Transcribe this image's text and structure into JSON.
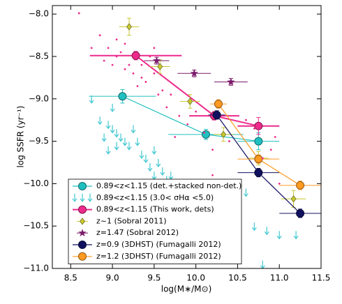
{
  "chart_data": {
    "type": "scatter",
    "xlabel": "log(M∗/M⊙)",
    "ylabel": "log SSFR  (yr⁻¹)",
    "xlim": [
      8.28,
      11.5
    ],
    "ylim": [
      -11.0,
      -7.9
    ],
    "xticks": [
      8.5,
      {
        "value": 9,
        "label": "9.0"
      },
      9.5,
      {
        "value": 10,
        "label": "10.0"
      },
      10.5,
      {
        "value": 11,
        "label": "11.0"
      },
      11.5
    ],
    "yticks": [
      {
        "value": -8,
        "label": "−8.0"
      },
      {
        "value": -8.5,
        "label": "−8.5"
      },
      {
        "value": -9,
        "label": "−9.0"
      },
      {
        "value": -9.5,
        "label": "−9.5"
      },
      {
        "value": -10,
        "label": "−10.0"
      },
      {
        "value": -10.5,
        "label": "−10.5"
      },
      {
        "value": -11,
        "label": "−11.0"
      }
    ],
    "legend": "lower left",
    "series": [
      {
        "name": "0.89<z<1.15 (det.+stacked non-det.)",
        "color": "#20c0c0",
        "marker": "circle",
        "line": true,
        "x": [
          9.12,
          10.12,
          10.75
        ],
        "y": [
          -8.97,
          -9.42,
          -9.5
        ],
        "xerr": [
          0.4,
          0.45,
          0.25
        ],
        "yerr": [
          0.08,
          0.06,
          0.1
        ]
      },
      {
        "name": "0.89<z<1.15  (3.0< σHα <5.0)",
        "color": "#40c8d0",
        "marker": "arrow",
        "line": false,
        "x": [
          9.0,
          8.85,
          8.95,
          9.0,
          9.05,
          8.9,
          9.1,
          9.15,
          9.2,
          8.95,
          9.05,
          9.25,
          9.3,
          9.35,
          9.4,
          9.45,
          9.5,
          9.55,
          9.6,
          9.65,
          9.7,
          9.75,
          9.8,
          9.85,
          9.9,
          9.95,
          10.0,
          10.1,
          10.15,
          10.25,
          10.35,
          10.45,
          10.6,
          10.7,
          10.85,
          11.0,
          11.2,
          10.8,
          8.75,
          9.5
        ],
        "y": [
          -9.1,
          -9.25,
          -9.3,
          -9.35,
          -9.4,
          -9.45,
          -9.45,
          -9.5,
          -9.55,
          -9.6,
          -9.55,
          -9.35,
          -9.5,
          -9.65,
          -9.7,
          -9.8,
          -9.9,
          -9.75,
          -9.85,
          -9.95,
          -9.9,
          -10.0,
          -10.05,
          -10.1,
          -10.15,
          -10.2,
          -10.25,
          -10.3,
          -10.5,
          -10.7,
          -10.55,
          -10.05,
          -10.1,
          -10.5,
          -10.55,
          -10.6,
          -10.6,
          -10.95,
          -9.0,
          -9.6
        ]
      },
      {
        "name": "0.89<z<1.15 (This work, dets)",
        "color": "#ee2a8c",
        "marker": "circle",
        "line": true,
        "x": [
          9.28,
          10.22,
          10.75
        ],
        "y": [
          -8.49,
          -9.2,
          -9.32
        ],
        "xerr": [
          0.55,
          0.3,
          0.25
        ],
        "yerr": [
          0.05,
          0.05,
          0.1
        ]
      },
      {
        "name": "z~1 (Sobral 2011)",
        "color": "#c8c832",
        "marker": "diamond",
        "line": false,
        "x": [
          9.2,
          9.57,
          9.93,
          10.33,
          10.75,
          11.17
        ],
        "y": [
          -8.15,
          -8.62,
          -9.03,
          -9.42,
          -9.7,
          -10.18
        ],
        "xerr": [
          0.12,
          0.12,
          0.12,
          0.12,
          0.12,
          0.15
        ],
        "yerr": [
          0.1,
          0.08,
          0.08,
          0.08,
          0.08,
          0.1
        ]
      },
      {
        "name": "z=1.47 (Sobral 2012)",
        "color": "#7a1a6a",
        "marker": "star",
        "line": false,
        "x": [
          9.53,
          9.98,
          10.42
        ],
        "y": [
          -8.55,
          -8.7,
          -8.8
        ],
        "xerr": [
          0.15,
          0.2,
          0.2
        ],
        "yerr": [
          0.04,
          0.04,
          0.04
        ]
      },
      {
        "name": "z=0.9 (3DHST) (Fumagalli 2012)",
        "color": "#101060",
        "marker": "circle",
        "line": true,
        "x": [
          10.25,
          10.75,
          11.25
        ],
        "y": [
          -9.19,
          -9.87,
          -10.35
        ],
        "xerr": [
          0.1,
          0.25,
          0.25
        ],
        "yerr": [
          0.05,
          0.05,
          0.05
        ]
      },
      {
        "name": "z=1.2 (3DHST) (Fumagalli 2012)",
        "color": "#ff9a20",
        "marker": "circle",
        "line": true,
        "x": [
          10.27,
          10.75,
          11.25
        ],
        "y": [
          -9.06,
          -9.71,
          -10.02
        ],
        "xerr": [
          0.1,
          0.25,
          0.25
        ],
        "yerr": [
          0.05,
          0.05,
          0.05
        ]
      },
      {
        "color": "#ee2a8c",
        "marker": "dot",
        "line": false,
        "x": [
          8.6,
          8.85,
          8.95,
          9.05,
          8.9,
          9.0,
          9.15,
          9.25,
          9.35,
          9.45,
          9.1,
          9.3,
          9.4,
          9.2,
          9.55,
          9.6,
          9.5,
          9.65,
          9.7,
          9.8,
          9.9,
          10.0,
          10.1,
          10.2,
          10.4,
          10.6,
          10.7,
          10.8,
          10.9,
          11.0,
          10.3,
          10.5,
          9.15,
          9.05,
          9.5,
          10.95,
          10.2,
          9.75,
          8.75,
          9.35
        ],
        "y": [
          -7.99,
          -8.25,
          -8.4,
          -8.3,
          -8.55,
          -8.6,
          -8.65,
          -8.7,
          -8.75,
          -8.5,
          -8.45,
          -8.85,
          -8.8,
          -8.6,
          -8.95,
          -8.9,
          -8.7,
          -9.1,
          -8.95,
          -9.2,
          -9.3,
          -9.15,
          -9.4,
          -9.6,
          -9.5,
          -9.25,
          -9.35,
          -9.7,
          -9.6,
          -10.0,
          -10.4,
          -10.6,
          -8.35,
          -8.5,
          -8.4,
          -9.45,
          -9.9,
          -9.45,
          -8.4,
          -8.6
        ]
      }
    ]
  }
}
